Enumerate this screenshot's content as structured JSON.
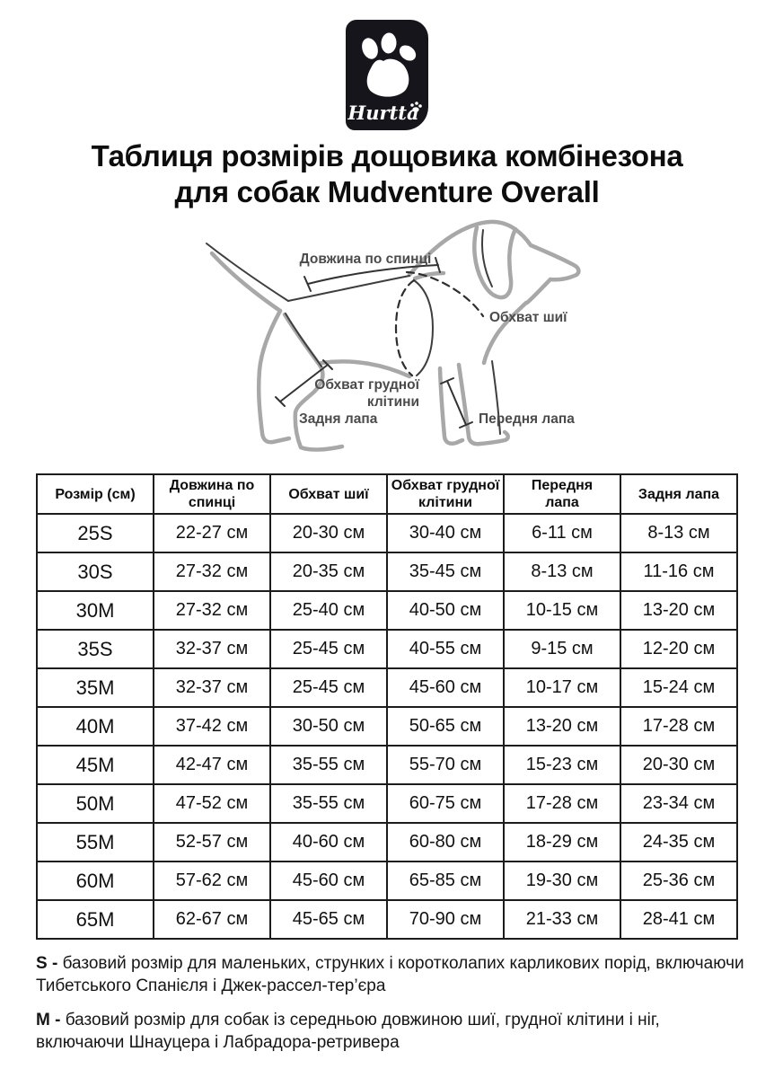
{
  "logo": {
    "brand": "Hurtta"
  },
  "title": {
    "line1": "Таблиця розмірів дощовика комбінезона",
    "line2": "для собак Mudventure Overall"
  },
  "diagram": {
    "labels": {
      "back_length": "Довжина по спинці",
      "neck_girth": "Обхват шиї",
      "chest_girth_line1": "Обхват грудної",
      "chest_girth_line2": "клітини",
      "front_paw": "Передня лапа",
      "hind_paw": "Задня лапа"
    }
  },
  "table": {
    "headers": [
      [
        "Розмір (см)"
      ],
      [
        "Довжина по",
        "спинці"
      ],
      [
        "Обхват шиї"
      ],
      [
        "Обхват грудної",
        "клітини"
      ],
      [
        "Передня",
        "лапа"
      ],
      [
        "Задня лапа"
      ]
    ],
    "rows": [
      [
        "25S",
        "22-27 см",
        "20-30 см",
        "30-40 см",
        "6-11 см",
        "8-13 см"
      ],
      [
        "30S",
        "27-32 см",
        "20-35 см",
        "35-45 см",
        "8-13 см",
        "11-16 см"
      ],
      [
        "30M",
        "27-32 см",
        "25-40 см",
        "40-50 см",
        "10-15 см",
        "13-20 см"
      ],
      [
        "35S",
        "32-37 см",
        "25-45 см",
        "40-55 см",
        "9-15 см",
        "12-20 см"
      ],
      [
        "35M",
        "32-37 см",
        "25-45 см",
        "45-60 см",
        "10-17 см",
        "15-24 см"
      ],
      [
        "40M",
        "37-42 см",
        "30-50 см",
        "50-65 см",
        "13-20 см",
        "17-28 см"
      ],
      [
        "45M",
        "42-47 см",
        "35-55 см",
        "55-70 см",
        "15-23 см",
        "20-30 см"
      ],
      [
        "50M",
        "47-52 см",
        "35-55 см",
        "60-75 см",
        "17-28 см",
        "23-34 см"
      ],
      [
        "55M",
        "52-57 см",
        "40-60 см",
        "60-80 см",
        "18-29 см",
        "24-35 см"
      ],
      [
        "60M",
        "57-62 см",
        "45-60 см",
        "65-85 см",
        "19-30 см",
        "25-36 см"
      ],
      [
        "65M",
        "62-67 см",
        "45-65 см",
        "70-90 см",
        "21-33 см",
        "28-41 см"
      ]
    ]
  },
  "notes": [
    {
      "prefix": "S -",
      "text": "базовий розмір для маленьких, струнких і коротколапих карликових порід, включаючи Тибетського Спанієля і Джек-рассел-тер’єра"
    },
    {
      "prefix": "M -",
      "text": "базовий розмір для собак із середньою довжиною шиї, грудної клітини і ніг, включаючи Шнауцера і Лабрадора-ретривера"
    }
  ],
  "colors": {
    "logo_bg": "#15151b",
    "text": "#0d0d0d",
    "diagram_label": "#4b4b4b",
    "dog_light": "#a8a8a8",
    "dog_dark": "#3e3e3e",
    "table_border": "#1c1c1c"
  }
}
